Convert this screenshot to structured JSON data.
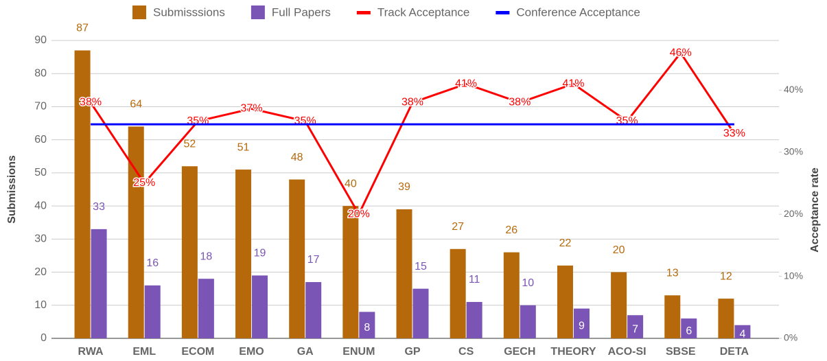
{
  "chart_data": {
    "type": "bar",
    "categories": [
      "RWA",
      "EML",
      "ECOM",
      "EMO",
      "GA",
      "ENUM",
      "GP",
      "CS",
      "GECH",
      "THEORY",
      "ACO-SI",
      "SBSE",
      "DETA"
    ],
    "series": [
      {
        "name": "Submisssions",
        "color": "#b5690b",
        "values": [
          87,
          64,
          52,
          51,
          48,
          40,
          39,
          27,
          26,
          22,
          20,
          13,
          12
        ]
      },
      {
        "name": "Full Papers",
        "color": "#7a55b5",
        "values": [
          33,
          16,
          18,
          19,
          17,
          8,
          15,
          11,
          10,
          9,
          7,
          6,
          4
        ]
      },
      {
        "name": "Track Acceptance",
        "color": "#ff0000",
        "type": "line",
        "axis": "y2",
        "values": [
          38,
          25,
          35,
          37,
          35,
          20,
          38,
          41,
          38,
          41,
          35,
          46,
          33
        ],
        "value_labels": [
          "38%",
          "25%",
          "35%",
          "37%",
          "35%",
          "20%",
          "38%",
          "41%",
          "38%",
          "41%",
          "35%",
          "46%",
          "33%"
        ]
      },
      {
        "name": "Conference Acceptance",
        "color": "#0000ff",
        "type": "line",
        "axis": "y2",
        "values": [
          34.5,
          34.5,
          34.5,
          34.5,
          34.5,
          34.5,
          34.5,
          34.5,
          34.5,
          34.5,
          34.5,
          34.5,
          34.5
        ]
      }
    ],
    "ylabel": "Submissions",
    "y2label": "Acceptance rate",
    "ylim": [
      0,
      90
    ],
    "yticks": [
      0,
      10,
      20,
      30,
      40,
      50,
      60,
      70,
      80,
      90
    ],
    "y2lim": [
      0,
      48
    ],
    "y2ticks": [
      {
        "value": 0,
        "label": "0%"
      },
      {
        "value": 10,
        "label": "10%"
      },
      {
        "value": 20,
        "label": "20%"
      },
      {
        "value": 30,
        "label": "30%"
      },
      {
        "value": 40,
        "label": "40%"
      }
    ],
    "grid": true,
    "legend": "top"
  }
}
